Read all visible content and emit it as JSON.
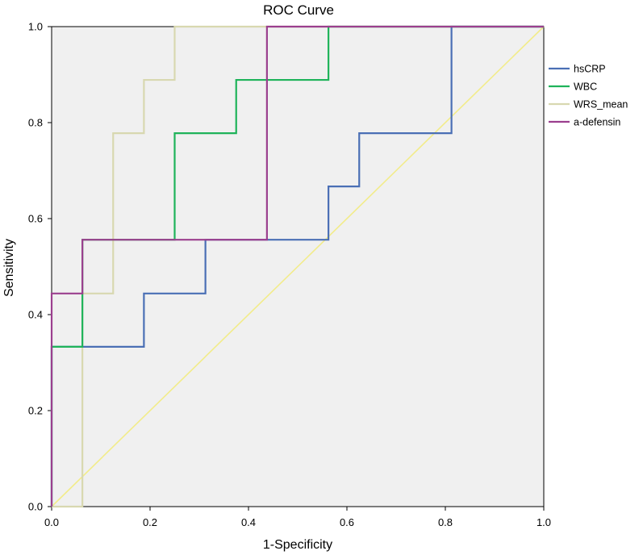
{
  "chart_data": {
    "type": "line",
    "title": "ROC Curve",
    "xlabel": "1-Specificity",
    "ylabel": "Sensitivity",
    "xlim": [
      0,
      1
    ],
    "ylim": [
      0,
      1
    ],
    "xticks": [
      "0.0",
      "0.2",
      "0.4",
      "0.6",
      "0.8",
      "1.0"
    ],
    "yticks": [
      "0.0",
      "0.2",
      "0.4",
      "0.6",
      "0.8",
      "1.0"
    ],
    "grid": false,
    "legend_position": "right",
    "plot_background": "#f0f0f0",
    "series": [
      {
        "name": "hsCRP",
        "color": "#4a6fb5",
        "x": [
          0,
          0,
          0.1875,
          0.1875,
          0.3125,
          0.3125,
          0.5625,
          0.5625,
          0.625,
          0.625,
          0.8125,
          0.8125,
          1.0
        ],
        "y": [
          0,
          0.333,
          0.333,
          0.444,
          0.444,
          0.556,
          0.556,
          0.667,
          0.667,
          0.778,
          0.778,
          1.0,
          1.0
        ]
      },
      {
        "name": "WBC",
        "color": "#1fb35a",
        "x": [
          0,
          0,
          0.0625,
          0.0625,
          0.25,
          0.25,
          0.375,
          0.375,
          0.5625,
          0.5625,
          1.0
        ],
        "y": [
          0,
          0.333,
          0.333,
          0.556,
          0.556,
          0.778,
          0.778,
          0.889,
          0.889,
          1.0,
          1.0
        ]
      },
      {
        "name": "WRS_mean",
        "color": "#d8d8b0",
        "x": [
          0,
          0.0625,
          0.0625,
          0.125,
          0.125,
          0.1875,
          0.1875,
          0.25,
          0.25,
          1.0
        ],
        "y": [
          0,
          0,
          0.444,
          0.444,
          0.778,
          0.778,
          0.889,
          0.889,
          1.0,
          1.0
        ]
      },
      {
        "name": "a-defensin",
        "color": "#9b3f8e",
        "x": [
          0,
          0,
          0.0625,
          0.0625,
          0.4375,
          0.4375,
          1.0
        ],
        "y": [
          0,
          0.444,
          0.444,
          0.556,
          0.556,
          1.0,
          1.0
        ]
      }
    ],
    "reference_line": {
      "color": "#f2ec8a",
      "x": [
        0,
        1
      ],
      "y": [
        0,
        1
      ]
    }
  }
}
